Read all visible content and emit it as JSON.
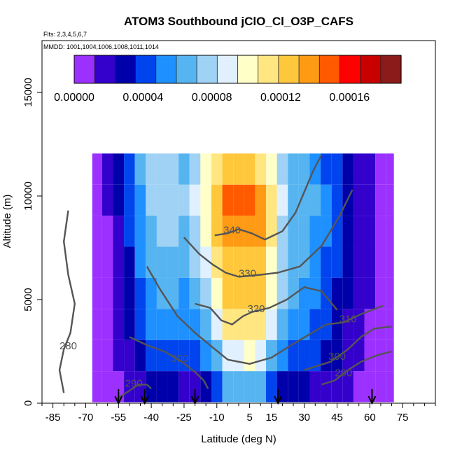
{
  "chart_data": {
    "type": "heatmap",
    "title": "ATOM3 Southbound jClO_Cl_O3P_CAFS",
    "flights_label": "Flts: 2,3,4,5,6,7",
    "dates_label": "MMDD: 1001,1004,1006,1008,1011,1014",
    "xlabel": "Latitude (deg N)",
    "ylabel": "Altitude (m)",
    "xlim": [
      -90,
      90
    ],
    "ylim": [
      0,
      17500
    ],
    "x_tick_labels": [
      "-85",
      "-70",
      "-55",
      "-40",
      "-25",
      "-10",
      "5",
      "15",
      "30",
      "45",
      "60",
      "75"
    ],
    "x_ticks": [
      -85,
      -70,
      -55,
      -40,
      -25,
      -10,
      5,
      15,
      30,
      45,
      60,
      75
    ],
    "x_minor_ticks": [
      -90,
      -80,
      -75,
      -65,
      -60,
      -50,
      -45,
      -35,
      -30,
      -20,
      -15,
      -5,
      0,
      10,
      20,
      25,
      35,
      40,
      50,
      55,
      65,
      70,
      80,
      85,
      90
    ],
    "y_tick_labels": [
      "0",
      "5000",
      "10000",
      "15000"
    ],
    "y_ticks": [
      0,
      5000,
      10000,
      15000
    ],
    "colorbar": {
      "min": 0,
      "max": 0.00019,
      "tick_labels": [
        "0.00000",
        "0.00004",
        "0.00008",
        "0.00012",
        "0.00016"
      ],
      "tick_values": [
        0,
        4e-05,
        8e-05,
        0.00012,
        0.00016
      ],
      "colors": [
        "#9b30ff",
        "#3300cc",
        "#0000aa",
        "#0044ee",
        "#1e90ff",
        "#56b4f0",
        "#9fd2f5",
        "#e0f0ff",
        "#ffffc8",
        "#ffe680",
        "#ffc83c",
        "#ff9a14",
        "#ff5a00",
        "#ff0000",
        "#c80000",
        "#8b1a1a"
      ]
    },
    "data_extent": {
      "lat_min": -67,
      "lat_max": 71,
      "alt_max": 12500
    },
    "field_cells": [
      {
        "lat": -65,
        "values": [
          3e-06,
          4e-06,
          4e-06,
          5e-06,
          6e-06,
          7e-06,
          8e-06,
          9e-06
        ]
      },
      {
        "lat": -60,
        "values": [
          8e-06,
          6e-06,
          5e-06,
          6e-06,
          8e-06,
          1e-05,
          1.2e-05,
          1.2e-05
        ]
      },
      {
        "lat": -55,
        "values": [
          1e-05,
          1.2e-05,
          1.4e-05,
          1.6e-05,
          1.8e-05,
          2.2e-05,
          2.4e-05,
          2.8e-05
        ]
      },
      {
        "lat": -50,
        "values": [
          1.4e-05,
          2e-05,
          2.4e-05,
          2.6e-05,
          3.2e-05,
          3.6e-05,
          4e-05,
          4.4e-05
        ]
      },
      {
        "lat": -45,
        "values": [
          2e-05,
          3e-05,
          3.6e-05,
          4e-05,
          4.8e-05,
          5.2e-05,
          5.8e-05,
          6e-05
        ]
      },
      {
        "lat": -40,
        "values": [
          2.8e-05,
          4e-05,
          4.8e-05,
          5.6e-05,
          6.4e-05,
          7e-05,
          7.4e-05,
          7.2e-05
        ]
      },
      {
        "lat": -35,
        "values": [
          2.6e-05,
          4.2e-05,
          5.6e-05,
          6.4e-05,
          7e-05,
          7.6e-05,
          7.8e-05,
          7.4e-05
        ]
      },
      {
        "lat": -30,
        "values": [
          2.4e-05,
          4e-05,
          5.4e-05,
          6e-05,
          6.6e-05,
          7.2e-05,
          7.6e-05,
          7.2e-05
        ]
      },
      {
        "lat": -25,
        "values": [
          2.2e-05,
          3.8e-05,
          5.2e-05,
          5.8e-05,
          6.4e-05,
          7e-05,
          7.4e-05,
          7e-05
        ]
      },
      {
        "lat": -20,
        "values": [
          2.2e-05,
          4e-05,
          5.6e-05,
          6.4e-05,
          7.2e-05,
          8e-05,
          8.4e-05,
          8e-05
        ]
      },
      {
        "lat": -15,
        "values": [
          2.6e-05,
          4.8e-05,
          6.6e-05,
          7.8e-05,
          8.8e-05,
          9.8e-05,
          0.000104,
          9.6e-05
        ]
      },
      {
        "lat": -10,
        "values": [
          3.6e-05,
          6.6e-05,
          9e-05,
          0.000104,
          0.000116,
          0.000124,
          0.00013,
          0.000112
        ]
      },
      {
        "lat": -5,
        "values": [
          6e-05,
          9e-05,
          0.000112,
          0.000122,
          0.000128,
          0.00014,
          0.000148,
          0.000122
        ]
      },
      {
        "lat": 0,
        "values": [
          6.4e-05,
          9.4e-05,
          0.000116,
          0.000124,
          0.00013,
          0.000142,
          0.00015,
          0.000124
        ]
      },
      {
        "lat": 5,
        "values": [
          6.6e-05,
          9.6e-05,
          0.000116,
          0.000124,
          0.00013,
          0.00014,
          0.000146,
          0.00012
        ]
      },
      {
        "lat": 10,
        "values": [
          6e-05,
          9e-05,
          0.000112,
          0.00012,
          0.000126,
          0.000134,
          0.00014,
          0.00011
        ]
      },
      {
        "lat": 15,
        "values": [
          4.4e-05,
          7e-05,
          8.8e-05,
          9.6e-05,
          0.000104,
          0.00011,
          0.000112,
          9.6e-05
        ]
      },
      {
        "lat": 20,
        "values": [
          3.2e-05,
          5.2e-05,
          6.6e-05,
          7.2e-05,
          7.8e-05,
          8.2e-05,
          8.4e-05,
          7.6e-05
        ]
      },
      {
        "lat": 25,
        "values": [
          2.6e-05,
          4e-05,
          5.4e-05,
          6e-05,
          6.4e-05,
          6.8e-05,
          7e-05,
          6.6e-05
        ]
      },
      {
        "lat": 30,
        "values": [
          2.4e-05,
          3.8e-05,
          5e-05,
          5.6e-05,
          6e-05,
          6.4e-05,
          6.6e-05,
          6e-05
        ]
      },
      {
        "lat": 35,
        "values": [
          2.2e-05,
          3.6e-05,
          4.6e-05,
          5.2e-05,
          5.6e-05,
          5.8e-05,
          6e-05,
          5.6e-05
        ]
      },
      {
        "lat": 40,
        "values": [
          2e-05,
          3e-05,
          3.8e-05,
          4.2e-05,
          4.6e-05,
          4.8e-05,
          5e-05,
          4.6e-05
        ]
      },
      {
        "lat": 45,
        "values": [
          1.6e-05,
          2.4e-05,
          3e-05,
          3.4e-05,
          3.6e-05,
          3.8e-05,
          4e-05,
          3.6e-05
        ]
      },
      {
        "lat": 50,
        "values": [
          1.2e-05,
          1.8e-05,
          2.2e-05,
          2.6e-05,
          2.8e-05,
          3e-05,
          3e-05,
          2.8e-05
        ]
      },
      {
        "lat": 55,
        "values": [
          1e-05,
          1.4e-05,
          1.6e-05,
          1.8e-05,
          2e-05,
          2.2e-05,
          2.2e-05,
          2e-05
        ]
      },
      {
        "lat": 60,
        "values": [
          6e-06,
          8e-06,
          1e-05,
          1.2e-05,
          1.2e-05,
          1.4e-05,
          1.4e-05,
          1.2e-05
        ]
      },
      {
        "lat": 65,
        "values": [
          4e-06,
          4e-06,
          5e-06,
          6e-06,
          6e-06,
          7e-06,
          8e-06,
          8e-06
        ]
      },
      {
        "lat": 70,
        "values": [
          4e-06,
          4e-06,
          4e-06,
          5e-06,
          5e-06,
          6e-06,
          6e-06,
          6e-06
        ]
      }
    ],
    "field_altitudes": [
      800,
      2300,
      3800,
      5300,
      6800,
      8300,
      9800,
      11300
    ],
    "contours": [
      {
        "label": "280",
        "label_lat": -78,
        "label_alt": 2600,
        "points": [
          [
            -80,
            500
          ],
          [
            -82,
            1600
          ],
          [
            -80,
            2600
          ],
          [
            -77,
            3400
          ],
          [
            -75,
            4800
          ],
          [
            -78,
            6200
          ],
          [
            -80,
            7800
          ],
          [
            -78,
            9300
          ]
        ]
      },
      {
        "label": "290",
        "label_lat": -48,
        "label_alt": 800,
        "points": [
          [
            -56,
            200
          ],
          [
            -50,
            600
          ],
          [
            -46,
            900
          ],
          [
            -42,
            900
          ],
          [
            -40,
            700
          ]
        ]
      },
      {
        "label": "290",
        "label_lat": 48,
        "label_alt": 1300,
        "points": [
          [
            38,
            900
          ],
          [
            44,
            1100
          ],
          [
            50,
            1600
          ],
          [
            56,
            2000
          ],
          [
            63,
            2300
          ],
          [
            70,
            2500
          ]
        ]
      },
      {
        "label": "300",
        "label_lat": -27,
        "label_alt": 2000,
        "points": [
          [
            -50,
            3200
          ],
          [
            -42,
            2800
          ],
          [
            -34,
            2500
          ],
          [
            -26,
            2000
          ],
          [
            -20,
            1500
          ],
          [
            -16,
            1100
          ],
          [
            -14,
            700
          ]
        ]
      },
      {
        "label": "300",
        "label_lat": 45,
        "label_alt": 2100,
        "points": [
          [
            30,
            1600
          ],
          [
            36,
            1800
          ],
          [
            42,
            2000
          ],
          [
            50,
            2600
          ],
          [
            56,
            3200
          ],
          [
            62,
            3600
          ],
          [
            70,
            3700
          ]
        ]
      },
      {
        "label": "310",
        "label_lat": 50,
        "label_alt": 3900,
        "points": [
          [
            -42,
            6600
          ],
          [
            -36,
            5500
          ],
          [
            -28,
            4200
          ],
          [
            -20,
            3400
          ],
          [
            -12,
            2700
          ],
          [
            -5,
            2100
          ],
          [
            5,
            1900
          ],
          [
            15,
            2200
          ],
          [
            24,
            2800
          ],
          [
            32,
            3300
          ],
          [
            40,
            3800
          ],
          [
            48,
            3900
          ],
          [
            56,
            4300
          ],
          [
            66,
            4700
          ]
        ]
      },
      {
        "label": "320",
        "label_lat": 8,
        "label_alt": 4400,
        "points": [
          [
            -20,
            4800
          ],
          [
            -13,
            4600
          ],
          [
            -8,
            4000
          ],
          [
            -3,
            3800
          ],
          [
            2,
            4200
          ],
          [
            6,
            4400
          ],
          [
            14,
            4600
          ],
          [
            22,
            5000
          ],
          [
            30,
            5600
          ],
          [
            38,
            5400
          ],
          [
            45,
            4500
          ]
        ]
      },
      {
        "label": "330",
        "label_lat": 4,
        "label_alt": 6100,
        "points": [
          [
            -25,
            8000
          ],
          [
            -18,
            7200
          ],
          [
            -12,
            6700
          ],
          [
            -6,
            6300
          ],
          [
            0,
            6100
          ],
          [
            10,
            6200
          ],
          [
            18,
            6300
          ],
          [
            28,
            6600
          ],
          [
            38,
            7600
          ],
          [
            46,
            9000
          ],
          [
            52,
            10300
          ]
        ]
      },
      {
        "label": "340",
        "label_lat": -3,
        "label_alt": 8200,
        "points": [
          [
            -11,
            8100
          ],
          [
            -5,
            8200
          ],
          [
            0,
            8400
          ],
          [
            6,
            8200
          ],
          [
            12,
            7900
          ],
          [
            20,
            8300
          ],
          [
            26,
            9200
          ],
          [
            30,
            10200
          ],
          [
            34,
            11200
          ],
          [
            38,
            12000
          ]
        ]
      }
    ],
    "arrow_lats": [
      -55,
      -43,
      -20,
      18,
      61
    ]
  }
}
